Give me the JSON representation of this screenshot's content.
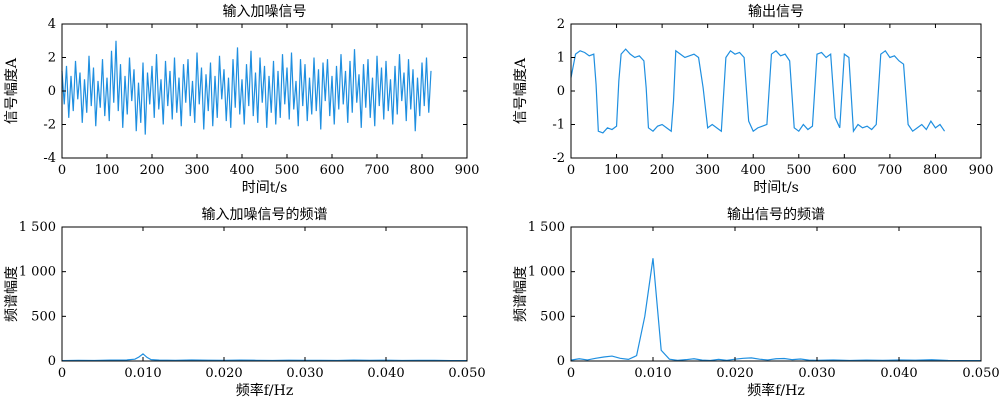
{
  "chart_data": [
    {
      "id": "noisy_input",
      "type": "line",
      "title": "输入加噪信号",
      "xlabel": "时间t/s",
      "ylabel": "信号幅度A",
      "xlim": [
        0,
        900
      ],
      "ylim": [
        -4,
        4
      ],
      "xticks": [
        "0",
        "100",
        "200",
        "300",
        "400",
        "500",
        "600",
        "700",
        "800",
        "900"
      ],
      "yticks": [
        "-4",
        "-2",
        "0",
        "2",
        "4"
      ],
      "grid": false,
      "series": [
        {
          "color": "#1f8fe0",
          "description_values": "dense random noise around 0, amplitude about ±2.5 (extremes about 3 and -2.6)",
          "x": [
            0,
            5,
            10,
            15,
            20,
            25,
            30,
            35,
            40,
            45,
            50,
            55,
            60,
            65,
            70,
            75,
            80,
            85,
            90,
            95,
            100,
            105,
            110,
            115,
            120,
            125,
            130,
            135,
            140,
            145,
            150,
            155,
            160,
            165,
            170,
            175,
            180,
            185,
            190,
            195,
            200,
            205,
            210,
            215,
            220,
            225,
            230,
            235,
            240,
            245,
            250,
            255,
            260,
            265,
            270,
            275,
            280,
            285,
            290,
            295,
            300,
            305,
            310,
            315,
            320,
            325,
            330,
            335,
            340,
            345,
            350,
            355,
            360,
            365,
            370,
            375,
            380,
            385,
            390,
            395,
            400,
            405,
            410,
            415,
            420,
            425,
            430,
            435,
            440,
            445,
            450,
            455,
            460,
            465,
            470,
            475,
            480,
            485,
            490,
            495,
            500,
            505,
            510,
            515,
            520,
            525,
            530,
            535,
            540,
            545,
            550,
            555,
            560,
            565,
            570,
            575,
            580,
            585,
            590,
            595,
            600,
            605,
            610,
            615,
            620,
            625,
            630,
            635,
            640,
            645,
            650,
            655,
            660,
            665,
            670,
            675,
            680,
            685,
            690,
            695,
            700,
            705,
            710,
            715,
            720,
            725,
            730,
            735,
            740,
            745,
            750,
            755,
            760,
            765,
            770,
            775,
            780,
            785,
            790,
            795,
            800,
            805,
            810,
            815,
            820
          ],
          "y": [
            1.2,
            -0.8,
            1.5,
            -1.6,
            0.9,
            -1.2,
            1.8,
            -0.5,
            1.1,
            -1.9,
            0.7,
            -1.3,
            2.1,
            -0.9,
            1.4,
            -2.1,
            0.6,
            -1.0,
            1.9,
            -1.5,
            0.8,
            -1.8,
            2.4,
            -0.7,
            3.0,
            -1.2,
            1.6,
            -2.2,
            0.9,
            -1.4,
            2.0,
            -0.6,
            1.3,
            -2.4,
            0.5,
            -1.9,
            1.7,
            -2.6,
            1.1,
            -0.8,
            1.5,
            -1.6,
            2.2,
            -1.1,
            0.7,
            -2.0,
            1.8,
            -0.9,
            1.2,
            -1.7,
            2.0,
            -1.3,
            0.8,
            -2.1,
            1.6,
            -0.7,
            1.9,
            -1.5,
            0.6,
            -1.9,
            2.3,
            -0.8,
            1.4,
            -2.3,
            1.0,
            -1.2,
            1.7,
            -2.1,
            0.9,
            -1.6,
            2.1,
            -0.5,
            1.3,
            -1.8,
            0.8,
            -2.2,
            1.9,
            -1.0,
            2.6,
            -1.4,
            0.7,
            -2.0,
            1.6,
            -0.9,
            2.4,
            -1.5,
            1.1,
            -1.9,
            2.0,
            -0.7,
            1.5,
            -2.2,
            0.9,
            -1.3,
            1.8,
            -2.0,
            1.2,
            -1.6,
            2.2,
            -0.8,
            1.4,
            -1.7,
            2.3,
            -1.1,
            0.6,
            -2.1,
            1.9,
            -0.9,
            1.6,
            -1.8,
            0.8,
            -1.4,
            2.0,
            -1.2,
            1.3,
            -2.3,
            1.7,
            -0.6,
            1.9,
            -1.5,
            0.9,
            -2.0,
            1.5,
            -1.1,
            2.2,
            -0.8,
            1.2,
            -1.9,
            1.8,
            -1.3,
            2.5,
            -0.7,
            1.0,
            -2.2,
            1.6,
            -1.0,
            1.9,
            -1.6,
            0.8,
            -2.1,
            2.1,
            -0.9,
            1.4,
            -1.7,
            1.8,
            -1.2,
            0.7,
            -2.0,
            1.5,
            -1.4,
            2.2,
            -0.6,
            1.1,
            -1.8,
            1.9,
            -1.1,
            1.3,
            -2.4,
            0.8,
            -1.5,
            1.7,
            -0.9,
            2.0,
            -1.3,
            1.2
          ]
        }
      ]
    },
    {
      "id": "output",
      "type": "line",
      "title": "输出信号",
      "xlabel": "时间t/s",
      "ylabel": "信号幅度A",
      "xlim": [
        0,
        900
      ],
      "ylim": [
        -2,
        2
      ],
      "xticks": [
        "0",
        "100",
        "200",
        "300",
        "400",
        "500",
        "600",
        "700",
        "800",
        "900"
      ],
      "yticks": [
        "-2",
        "-1",
        "0",
        "1",
        "2"
      ],
      "grid": false,
      "series": [
        {
          "color": "#1f8fe0",
          "description_values": "square wave switching between about +1.1 and -1.1 with small noise, period about 100 s",
          "x": [
            0,
            10,
            20,
            30,
            40,
            50,
            55,
            60,
            70,
            80,
            90,
            100,
            105,
            110,
            120,
            130,
            140,
            150,
            160,
            165,
            170,
            180,
            190,
            200,
            210,
            220,
            225,
            230,
            240,
            250,
            260,
            270,
            280,
            290,
            300,
            310,
            320,
            330,
            340,
            350,
            360,
            370,
            380,
            390,
            400,
            410,
            420,
            430,
            440,
            450,
            460,
            470,
            480,
            490,
            500,
            510,
            520,
            530,
            540,
            550,
            560,
            570,
            580,
            590,
            600,
            610,
            620,
            630,
            640,
            650,
            660,
            670,
            680,
            690,
            700,
            710,
            720,
            730,
            740,
            750,
            760,
            770,
            780,
            790,
            800,
            810,
            820
          ],
          "y": [
            0.4,
            1.1,
            1.2,
            1.15,
            1.05,
            1.1,
            0.2,
            -1.2,
            -1.25,
            -1.1,
            -1.15,
            -1.05,
            0.3,
            1.1,
            1.25,
            1.1,
            1.0,
            1.05,
            0.9,
            0.1,
            -1.1,
            -1.2,
            -1.05,
            -1.0,
            -1.1,
            -1.2,
            -0.3,
            1.2,
            1.1,
            1.0,
            1.05,
            1.1,
            1.0,
            0.1,
            -1.1,
            -1.0,
            -1.1,
            -1.2,
            1.0,
            1.2,
            1.1,
            1.15,
            1.0,
            -0.9,
            -1.2,
            -1.1,
            -1.05,
            -1.0,
            1.1,
            1.2,
            1.05,
            1.1,
            0.9,
            -1.1,
            -1.2,
            -1.0,
            -1.15,
            -1.05,
            1.1,
            1.15,
            1.0,
            1.1,
            -0.8,
            -1.1,
            1.1,
            1.0,
            -1.2,
            -1.0,
            -1.1,
            -1.05,
            -1.15,
            -1.0,
            1.1,
            1.2,
            1.0,
            1.05,
            0.9,
            0.8,
            -1.0,
            -1.2,
            -1.1,
            -1.0,
            -1.15,
            -0.9,
            -1.1,
            -1.0,
            -1.2
          ]
        }
      ]
    },
    {
      "id": "input_spectrum",
      "type": "line",
      "title": "输入加噪信号的频谱",
      "xlabel": "频率f/Hz",
      "ylabel": "频谱幅度",
      "xlim": [
        0,
        0.05
      ],
      "ylim": [
        0,
        1500
      ],
      "xticks": [
        "0",
        "0.010",
        "0.020",
        "0.030",
        "0.040",
        "0.050"
      ],
      "yticks": [
        "0",
        "500",
        "1 000",
        "1 500"
      ],
      "grid": false,
      "series": [
        {
          "color": "#1f8fe0",
          "x": [
            0,
            0.002,
            0.004,
            0.006,
            0.008,
            0.009,
            0.0095,
            0.01,
            0.0105,
            0.011,
            0.012,
            0.014,
            0.016,
            0.018,
            0.02,
            0.022,
            0.024,
            0.026,
            0.028,
            0.03,
            0.032,
            0.034,
            0.036,
            0.038,
            0.04,
            0.042,
            0.044,
            0.046,
            0.048,
            0.05
          ],
          "y": [
            5,
            8,
            6,
            10,
            12,
            20,
            45,
            80,
            40,
            15,
            10,
            8,
            12,
            9,
            7,
            10,
            8,
            6,
            9,
            7,
            8,
            6,
            10,
            7,
            9,
            6,
            8,
            7,
            5,
            4
          ]
        }
      ]
    },
    {
      "id": "output_spectrum",
      "type": "line",
      "title": "输出信号的频谱",
      "xlabel": "频率f/Hz",
      "ylabel": "频谱幅度",
      "xlim": [
        0,
        0.05
      ],
      "ylim": [
        0,
        1500
      ],
      "xticks": [
        "0",
        "0.010",
        "0.020",
        "0.030",
        "0.040",
        "0.050"
      ],
      "yticks": [
        "0",
        "500",
        "1 000",
        "1 500"
      ],
      "grid": false,
      "series": [
        {
          "color": "#1f8fe0",
          "x": [
            0,
            0.001,
            0.002,
            0.003,
            0.004,
            0.005,
            0.006,
            0.007,
            0.008,
            0.009,
            0.01,
            0.011,
            0.012,
            0.013,
            0.014,
            0.015,
            0.016,
            0.017,
            0.018,
            0.019,
            0.02,
            0.021,
            0.022,
            0.023,
            0.024,
            0.025,
            0.026,
            0.027,
            0.028,
            0.029,
            0.03,
            0.032,
            0.034,
            0.036,
            0.038,
            0.04,
            0.042,
            0.044,
            0.046,
            0.048,
            0.05
          ],
          "y": [
            10,
            25,
            12,
            30,
            45,
            55,
            30,
            18,
            60,
            500,
            1150,
            120,
            20,
            8,
            15,
            25,
            10,
            6,
            18,
            8,
            20,
            30,
            35,
            20,
            12,
            25,
            28,
            15,
            22,
            10,
            8,
            12,
            6,
            10,
            7,
            12,
            9,
            14,
            6,
            5,
            4
          ]
        }
      ]
    }
  ]
}
